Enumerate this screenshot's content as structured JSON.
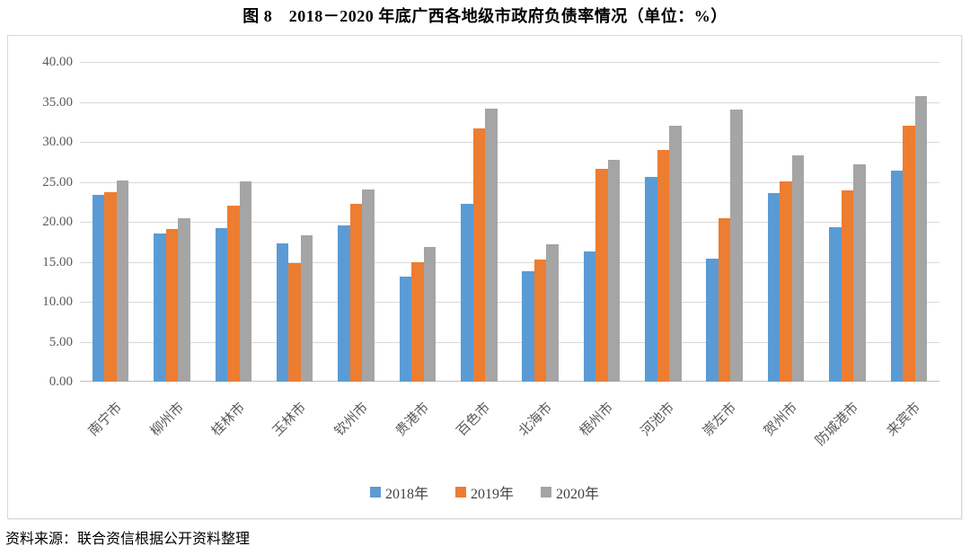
{
  "title": "图 8　2018－2020 年底广西各地级市政府负债率情况（单位：%）",
  "source": "资料来源：联合资信根据公开资料整理",
  "colors": {
    "series_2018": "#5B9BD5",
    "series_2019": "#ED7D31",
    "series_2020": "#A5A5A5",
    "gridline": "#D9D9D9",
    "axis_text": "#595959",
    "chart_border": "#D9D9D9"
  },
  "chart_data": {
    "type": "bar",
    "title": "图 8　2018－2020 年底广西各地级市政府负债率情况（单位：%）",
    "categories": [
      "南宁市",
      "柳州市",
      "桂林市",
      "玉林市",
      "钦州市",
      "贵港市",
      "百色市",
      "北海市",
      "梧州市",
      "河池市",
      "崇左市",
      "贺州市",
      "防城港市",
      "来宾市"
    ],
    "series": [
      {
        "name": "2018年",
        "color": "#5B9BD5",
        "values": [
          23.4,
          18.5,
          19.2,
          17.3,
          19.5,
          13.1,
          22.2,
          13.8,
          16.3,
          25.6,
          15.4,
          23.6,
          19.3,
          26.4
        ]
      },
      {
        "name": "2019年",
        "color": "#ED7D31",
        "values": [
          23.7,
          19.1,
          22.0,
          14.8,
          22.2,
          14.9,
          31.7,
          15.3,
          26.6,
          29.0,
          20.5,
          25.1,
          23.9,
          32.0
        ]
      },
      {
        "name": "2020年",
        "color": "#A5A5A5",
        "values": [
          25.2,
          20.4,
          25.1,
          18.3,
          24.1,
          16.8,
          34.2,
          17.2,
          27.8,
          32.0,
          34.1,
          28.3,
          27.2,
          35.7
        ]
      }
    ],
    "xlabel": "",
    "ylabel": "",
    "ylim": [
      0,
      40
    ],
    "ytick_step": 5,
    "ytick_labels": [
      "0.00",
      "5.00",
      "10.00",
      "15.00",
      "20.00",
      "25.00",
      "30.00",
      "35.00",
      "40.00"
    ],
    "grid": true,
    "legend_position": "bottom"
  }
}
